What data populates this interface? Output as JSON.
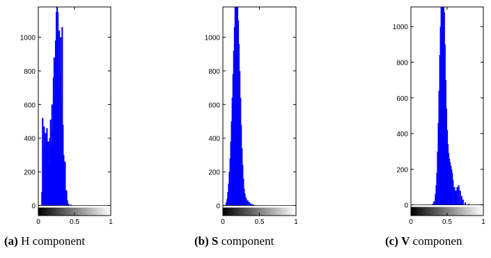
{
  "chart_data": [
    {
      "type": "bar",
      "title": "",
      "caption": {
        "tag": "(a)",
        "label": "H",
        "suffix": "component"
      },
      "xlabel": "",
      "ylabel": "",
      "xlim": [
        0,
        1
      ],
      "ylim": [
        -60,
        1180
      ],
      "xticks": [
        "0",
        "0.5",
        "1"
      ],
      "yticks": [
        0,
        200,
        400,
        600,
        800,
        1000
      ],
      "color": "#0000ff",
      "grid": false,
      "x": [
        0.05,
        0.06,
        0.07,
        0.08,
        0.09,
        0.1,
        0.11,
        0.12,
        0.13,
        0.14,
        0.15,
        0.16,
        0.17,
        0.18,
        0.19,
        0.2,
        0.21,
        0.22,
        0.23,
        0.24,
        0.25,
        0.26,
        0.27,
        0.28,
        0.29,
        0.3,
        0.31,
        0.32,
        0.33,
        0.34,
        0.35,
        0.36,
        0.37,
        0.38,
        0.39,
        0.4,
        0.42,
        0.45
      ],
      "values": [
        80,
        520,
        340,
        470,
        260,
        430,
        150,
        460,
        300,
        380,
        240,
        400,
        510,
        350,
        600,
        450,
        760,
        880,
        640,
        980,
        1150,
        1180,
        1150,
        700,
        1040,
        780,
        1000,
        640,
        1060,
        480,
        300,
        120,
        260,
        60,
        90,
        30,
        10,
        5
      ]
    },
    {
      "type": "bar",
      "title": "",
      "caption": {
        "tag": "(b)",
        "label": "S",
        "suffix": "component"
      },
      "xlabel": "",
      "ylabel": "",
      "xlim": [
        0,
        1
      ],
      "ylim": [
        -60,
        1180
      ],
      "xticks": [
        "0",
        "0.5",
        "1"
      ],
      "yticks": [
        0,
        200,
        400,
        600,
        800,
        1000
      ],
      "color": "#0000ff",
      "grid": false,
      "x": [
        0.04,
        0.05,
        0.06,
        0.07,
        0.08,
        0.09,
        0.1,
        0.11,
        0.12,
        0.13,
        0.14,
        0.15,
        0.16,
        0.17,
        0.18,
        0.19,
        0.2,
        0.21,
        0.22,
        0.23,
        0.24,
        0.25,
        0.26,
        0.27,
        0.28,
        0.29,
        0.3,
        0.31,
        0.32,
        0.34,
        0.36,
        0.38,
        0.4,
        0.42,
        0.45
      ],
      "values": [
        5,
        20,
        40,
        80,
        130,
        200,
        280,
        380,
        500,
        640,
        780,
        920,
        1060,
        1180,
        1180,
        1180,
        1180,
        1100,
        960,
        800,
        640,
        480,
        340,
        240,
        160,
        100,
        70,
        50,
        40,
        30,
        20,
        12,
        8,
        5,
        2
      ]
    },
    {
      "type": "bar",
      "title": "",
      "caption": {
        "tag": "(c)",
        "label": "V",
        "suffix": "componen"
      },
      "xlabel": "",
      "ylabel": "",
      "xlim": [
        0,
        1
      ],
      "ylim": [
        -60,
        1110
      ],
      "xticks": [
        "0",
        "0.5",
        "1"
      ],
      "yticks": [
        0,
        200,
        400,
        600,
        800,
        1000
      ],
      "color": "#0000ff",
      "grid": false,
      "x": [
        0.3,
        0.32,
        0.34,
        0.35,
        0.36,
        0.37,
        0.38,
        0.39,
        0.4,
        0.41,
        0.42,
        0.43,
        0.44,
        0.45,
        0.46,
        0.47,
        0.48,
        0.49,
        0.5,
        0.51,
        0.52,
        0.53,
        0.54,
        0.55,
        0.56,
        0.57,
        0.58,
        0.6,
        0.62,
        0.64,
        0.66,
        0.68,
        0.7,
        0.72,
        0.75,
        0.8
      ],
      "values": [
        5,
        20,
        60,
        110,
        180,
        300,
        460,
        640,
        840,
        1000,
        1110,
        1110,
        1110,
        1110,
        1080,
        900,
        700,
        540,
        420,
        340,
        290,
        260,
        240,
        220,
        200,
        180,
        140,
        100,
        80,
        100,
        110,
        80,
        50,
        30,
        15,
        5
      ]
    }
  ]
}
